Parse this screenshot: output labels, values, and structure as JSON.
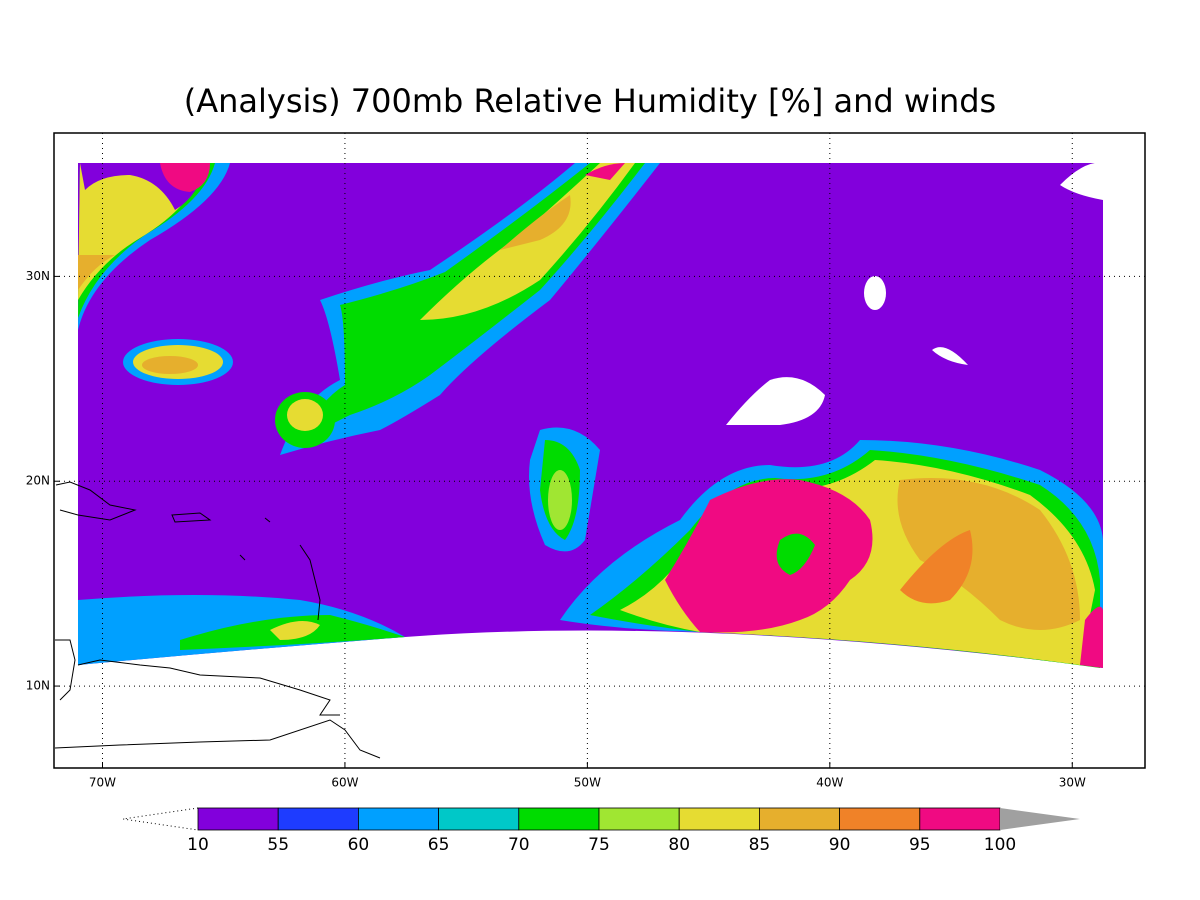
{
  "title": "(Analysis) 700mb Relative Humidity [%] and winds",
  "map": {
    "xlim": [
      -72,
      -27
    ],
    "ylim": [
      6,
      37
    ],
    "xticks": [
      {
        "value": -70,
        "label": "70W"
      },
      {
        "value": -60,
        "label": "60W"
      },
      {
        "value": -50,
        "label": "50W"
      },
      {
        "value": -40,
        "label": "40W"
      },
      {
        "value": -30,
        "label": "30W"
      }
    ],
    "yticks": [
      {
        "value": 30,
        "label": "30N"
      },
      {
        "value": 20,
        "label": "20N"
      },
      {
        "value": 10,
        "label": "10N"
      }
    ],
    "grid": true
  },
  "colorbar": {
    "levels": [
      10,
      55,
      60,
      65,
      70,
      75,
      80,
      85,
      90,
      95,
      100
    ],
    "colors": [
      "#8200dc",
      "#1e3cff",
      "#00a0ff",
      "#00c8c8",
      "#00dc00",
      "#a0e632",
      "#e6dc32",
      "#e6af2d",
      "#f08228",
      "#f00a82"
    ],
    "over_color": "#a0a0a0"
  }
}
